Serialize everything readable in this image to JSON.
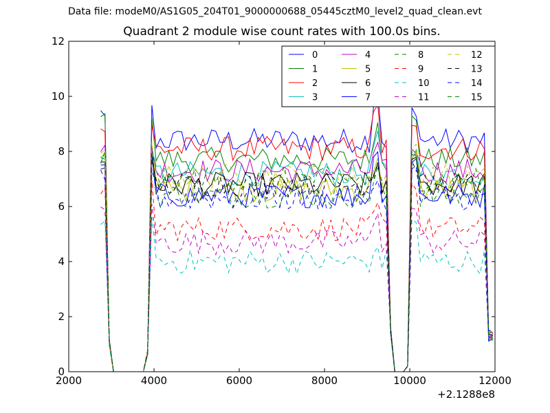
{
  "suptitle": "Data file: modeM0/AS1G05_204T01_9000000688_05445cztM0_level2_quad_clean.evt",
  "chart_data": {
    "type": "line",
    "title": "Quadrant 2 module wise count rates with 100.0s bins.",
    "xlabel": "",
    "ylabel": "",
    "x_offset_label": "+2.1288e8",
    "xlim": [
      2000,
      12000
    ],
    "ylim": [
      0,
      12
    ],
    "xticks": [
      2000,
      4000,
      6000,
      8000,
      10000,
      12000
    ],
    "yticks": [
      0,
      2,
      4,
      6,
      8,
      10,
      12
    ],
    "legend_location": "top-right",
    "legend_columns": 4,
    "x_interval_start": 2750,
    "x_interval_step": 100,
    "note_x_structure": "orbit 1 from 2750 to 3850 with data gap near zero from 3000 to 3800; orbit 2 from 3950 to 9650; zero gap 9650 to 9950; orbit 3 from 10050 to 11950",
    "series": [
      {
        "name": "0",
        "style": "solid",
        "color": "#0000ff",
        "level": 8.4,
        "peak_start": 9.6,
        "peak_mid": 10.2
      },
      {
        "name": "1",
        "style": "solid",
        "color": "#008000",
        "level": 7.7,
        "peak_start": 9.3,
        "peak_mid": 9.0
      },
      {
        "name": "2",
        "style": "solid",
        "color": "#ff0000",
        "level": 8.1,
        "peak_start": 8.9,
        "peak_mid": 9.8
      },
      {
        "name": "3",
        "style": "solid",
        "color": "#00bfbf",
        "level": 7.2,
        "peak_start": 8.0,
        "peak_mid": 8.7
      },
      {
        "name": "4",
        "style": "solid",
        "color": "#bf00bf",
        "level": 7.3,
        "peak_start": 8.2,
        "peak_mid": 8.3
      },
      {
        "name": "5",
        "style": "solid",
        "color": "#bfbf00",
        "level": 6.6,
        "peak_start": 8.0,
        "peak_mid": 7.9
      },
      {
        "name": "6",
        "style": "solid",
        "color": "#000000",
        "level": 6.8,
        "peak_start": 8.0,
        "peak_mid": 7.6
      },
      {
        "name": "7",
        "style": "solid",
        "color": "#0000ff",
        "level": 6.4,
        "peak_start": 7.8,
        "peak_mid": 8.2
      },
      {
        "name": "8",
        "style": "dashed",
        "color": "#008000",
        "level": 6.4,
        "peak_start": 8.0,
        "peak_mid": 7.4
      },
      {
        "name": "9",
        "style": "dashed",
        "color": "#ff0000",
        "level": 5.2,
        "peak_start": 6.9,
        "peak_mid": 6.1
      },
      {
        "name": "10",
        "style": "dashed",
        "color": "#00bfbf",
        "level": 4.0,
        "peak_start": 5.6,
        "peak_mid": 4.6
      },
      {
        "name": "11",
        "style": "dashed",
        "color": "#bf00bf",
        "level": 4.7,
        "peak_start": 6.0,
        "peak_mid": 5.9
      },
      {
        "name": "12",
        "style": "dashed",
        "color": "#bfbf00",
        "level": 7.1,
        "peak_start": 8.3,
        "peak_mid": 7.7
      },
      {
        "name": "13",
        "style": "dashed",
        "color": "#000000",
        "level": 6.8,
        "peak_start": 7.6,
        "peak_mid": 7.7
      },
      {
        "name": "14",
        "style": "dashed",
        "color": "#0000ff",
        "level": 6.3,
        "peak_start": 7.4,
        "peak_mid": 7.0
      },
      {
        "name": "15",
        "style": "dashed",
        "color": "#008000",
        "level": 7.0,
        "peak_start": 8.0,
        "peak_mid": 7.4
      }
    ]
  }
}
